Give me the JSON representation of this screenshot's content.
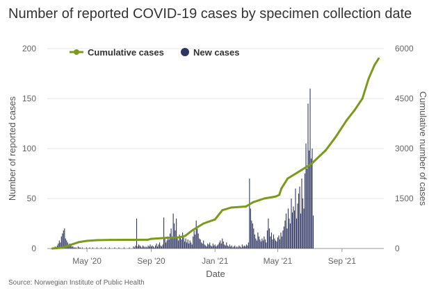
{
  "chart_data": {
    "type": "bar+line",
    "title": "Number of reported COVID-19 cases by specimen collection date",
    "source": "Source: Norwegian Institute of Public Health",
    "xlabel": "Date",
    "ylabel_left": "Number of reported cases",
    "ylabel_right": "Cumulative number of cases",
    "y_left_range": [
      0,
      200
    ],
    "y_right_range": [
      0,
      6000
    ],
    "y_left_ticks": [
      "0",
      "50",
      "100",
      "150",
      "200"
    ],
    "y_right_ticks": [
      "0",
      "1500",
      "3000",
      "4500",
      "6000"
    ],
    "x_range": [
      "2020-02-15",
      "2021-11-20"
    ],
    "x_ticks": [
      {
        "date": "2020-05-01",
        "label": "May '20"
      },
      {
        "date": "2020-09-01",
        "label": "Sep '20"
      },
      {
        "date": "2021-01-01",
        "label": "Jan '21"
      },
      {
        "date": "2021-05-01",
        "label": "May '21"
      },
      {
        "date": "2021-09-01",
        "label": "Sep '21"
      }
    ],
    "grid": "horizontal",
    "legend_position": "top",
    "colors": {
      "cumulative": "#7a9a1a",
      "new": "#2e3560"
    },
    "series": [
      {
        "name": "Cumulative cases",
        "type": "line",
        "axis": "right",
        "points": [
          {
            "date": "2020-02-25",
            "value": 0
          },
          {
            "date": "2020-03-15",
            "value": 25
          },
          {
            "date": "2020-03-31",
            "value": 110
          },
          {
            "date": "2020-04-15",
            "value": 190
          },
          {
            "date": "2020-05-01",
            "value": 230
          },
          {
            "date": "2020-05-20",
            "value": 250
          },
          {
            "date": "2020-06-15",
            "value": 258
          },
          {
            "date": "2020-08-25",
            "value": 262
          },
          {
            "date": "2020-09-01",
            "value": 290
          },
          {
            "date": "2020-09-30",
            "value": 320
          },
          {
            "date": "2020-10-25",
            "value": 335
          },
          {
            "date": "2020-11-05",
            "value": 380
          },
          {
            "date": "2020-11-20",
            "value": 560
          },
          {
            "date": "2020-12-10",
            "value": 750
          },
          {
            "date": "2021-01-01",
            "value": 870
          },
          {
            "date": "2021-01-15",
            "value": 1150
          },
          {
            "date": "2021-02-01",
            "value": 1230
          },
          {
            "date": "2021-03-01",
            "value": 1260
          },
          {
            "date": "2021-03-15",
            "value": 1390
          },
          {
            "date": "2021-04-05",
            "value": 1500
          },
          {
            "date": "2021-04-27",
            "value": 1560
          },
          {
            "date": "2021-05-04",
            "value": 1610
          },
          {
            "date": "2021-05-08",
            "value": 1800
          },
          {
            "date": "2021-05-20",
            "value": 2100
          },
          {
            "date": "2021-06-15",
            "value": 2350
          },
          {
            "date": "2021-07-05",
            "value": 2550
          },
          {
            "date": "2021-08-01",
            "value": 2950
          },
          {
            "date": "2021-08-20",
            "value": 3350
          },
          {
            "date": "2021-09-10",
            "value": 3850
          },
          {
            "date": "2021-09-25",
            "value": 4150
          },
          {
            "date": "2021-10-10",
            "value": 4500
          },
          {
            "date": "2021-10-22",
            "value": 5100
          },
          {
            "date": "2021-11-02",
            "value": 5500
          },
          {
            "date": "2021-11-10",
            "value": 5700
          }
        ]
      },
      {
        "name": "New cases",
        "type": "bar",
        "axis": "left",
        "start_date": "2020-02-26",
        "step_days": 2,
        "values": [
          0,
          1,
          2,
          0,
          3,
          5,
          8,
          6,
          12,
          15,
          18,
          20,
          10,
          8,
          6,
          4,
          5,
          3,
          2,
          2,
          1,
          1,
          1,
          0,
          2,
          1,
          1,
          0,
          1,
          0,
          0,
          0,
          1,
          0,
          0,
          1,
          0,
          0,
          1,
          0,
          0,
          0,
          1,
          0,
          0,
          0,
          1,
          0,
          0,
          0,
          1,
          0,
          0,
          0,
          1,
          0,
          0,
          0,
          0,
          1,
          0,
          0,
          0,
          1,
          0,
          0,
          0,
          0,
          1,
          0,
          0,
          0,
          0,
          1,
          0,
          0,
          0,
          2,
          1,
          3,
          30,
          2,
          4,
          3,
          2,
          1,
          3,
          2,
          1,
          2,
          1,
          3,
          2,
          4,
          2,
          3,
          2,
          1,
          3,
          5,
          2,
          4,
          6,
          3,
          2,
          4,
          31,
          10,
          6,
          8,
          12,
          9,
          15,
          20,
          12,
          35,
          25,
          18,
          30,
          10,
          8,
          14,
          12,
          9,
          16,
          11,
          7,
          10,
          6,
          9,
          5,
          8,
          6,
          4,
          12,
          18,
          14,
          28,
          20,
          15,
          10,
          9,
          6,
          5,
          8,
          4,
          3,
          2,
          5,
          4,
          6,
          3,
          2,
          5,
          3,
          4,
          2,
          3,
          4,
          6,
          8,
          5,
          10,
          7,
          4,
          3,
          6,
          3,
          2,
          4,
          2,
          3,
          1,
          2,
          3,
          1,
          2,
          1,
          3,
          2,
          1,
          4,
          2,
          3,
          2,
          4,
          3,
          6,
          70,
          40,
          28,
          25,
          20,
          14,
          10,
          8,
          16,
          12,
          9,
          7,
          10,
          8,
          12,
          9,
          6,
          18,
          30,
          20,
          12,
          16,
          9,
          14,
          10,
          8,
          7,
          11,
          13,
          9,
          16,
          12,
          18,
          22,
          28,
          35,
          20,
          40,
          30,
          25,
          50,
          36,
          42,
          38,
          60,
          30,
          45,
          55,
          62,
          35,
          70,
          50,
          40,
          75,
          105,
          80,
          145,
          98,
          160,
          90,
          100,
          33
        ]
      }
    ]
  }
}
